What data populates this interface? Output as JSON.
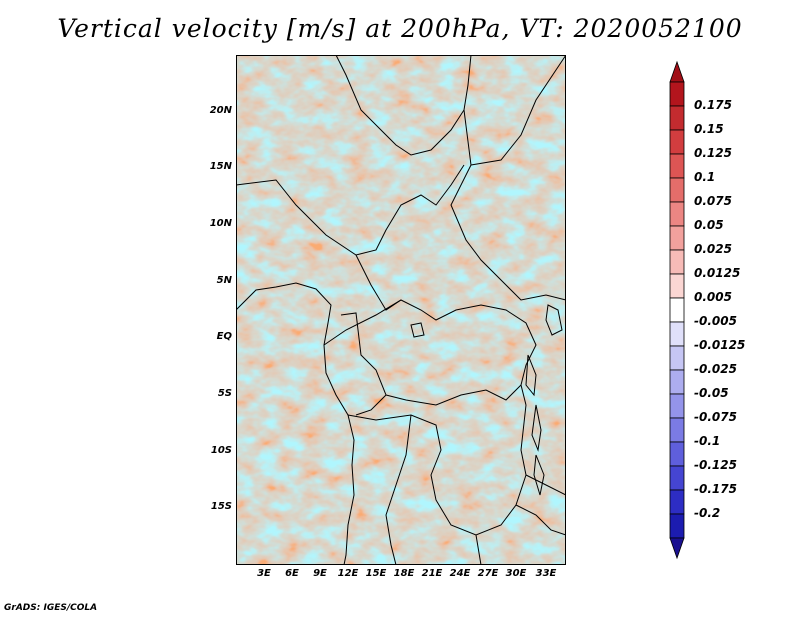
{
  "title": "Vertical velocity [m/s] at 200hPa, VT: 2020052100",
  "credit": "GrADS: IGES/COLA",
  "map": {
    "lon_range": [
      0,
      36
    ],
    "lat_range": [
      -20,
      25
    ],
    "y_ticks": [
      "20N",
      "15N",
      "10N",
      "5N",
      "EQ",
      "5S",
      "10S",
      "15S"
    ],
    "x_ticks": [
      "3E",
      "6E",
      "9E",
      "12E",
      "15E",
      "18E",
      "21E",
      "24E",
      "27E",
      "30E",
      "33E"
    ],
    "field_variable": "vertical velocity",
    "field_units": "m/s",
    "pressure_level": "200hPa"
  },
  "colorbar": {
    "labels": [
      "0.175",
      "0.15",
      "0.125",
      "0.1",
      "0.075",
      "0.05",
      "0.025",
      "0.0125",
      "0.005",
      "-0.005",
      "-0.0125",
      "-0.025",
      "-0.05",
      "-0.075",
      "-0.1",
      "-0.125",
      "-0.175",
      "-0.2"
    ],
    "colors": [
      "#b3151d",
      "#c32b2f",
      "#d23d3f",
      "#dd5554",
      "#e46d6a",
      "#ec8683",
      "#f2a19d",
      "#f7bbb7",
      "#fbd6d3",
      "#ffffff",
      "#e0e0fa",
      "#c6c6f4",
      "#adadef",
      "#9494ea",
      "#7b7be4",
      "#5f5fdc",
      "#4545d2",
      "#2d2dc4",
      "#1c1cb0"
    ],
    "top_arrow_color": "#a10f17",
    "bottom_arrow_color": "#1a1090"
  }
}
